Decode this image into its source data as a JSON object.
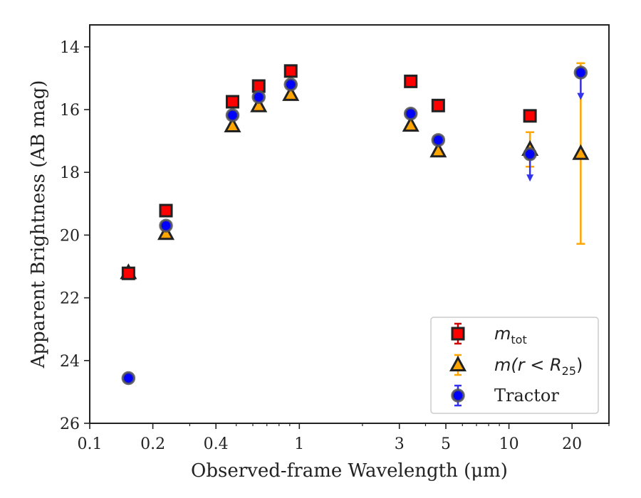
{
  "chart_data": {
    "type": "scatter",
    "xlabel": "Observed-frame Wavelength (μm)",
    "ylabel": "Apparent Brightness (AB mag)",
    "x_scale": "log",
    "xlim": [
      0.1,
      30
    ],
    "ylim": [
      26,
      13.3
    ],
    "y_inverted": true,
    "x_ticks": [
      0.1,
      0.2,
      0.4,
      1,
      3,
      5,
      10,
      20
    ],
    "x_tick_labels": [
      "0.1",
      "0.2",
      "0.4",
      "1",
      "3",
      "5",
      "10",
      "20"
    ],
    "y_ticks": [
      14,
      16,
      18,
      20,
      22,
      24,
      26
    ],
    "y_tick_labels": [
      "14",
      "16",
      "18",
      "20",
      "22",
      "24",
      "26"
    ],
    "grid": false,
    "legend_position": "bottom-right",
    "series": [
      {
        "name": "m_tot",
        "legend_main": "m",
        "legend_sub": "tot",
        "marker": "square",
        "color": "#ff0000",
        "edge_color": "#222222",
        "error_color": "#cc0000",
        "points": [
          {
            "x": 0.153,
            "y": 21.22
          },
          {
            "x": 0.231,
            "y": 19.22
          },
          {
            "x": 0.48,
            "y": 15.75
          },
          {
            "x": 0.64,
            "y": 15.25
          },
          {
            "x": 0.91,
            "y": 14.77
          },
          {
            "x": 3.4,
            "y": 15.1
          },
          {
            "x": 4.6,
            "y": 15.87
          },
          {
            "x": 12.6,
            "y": 16.2
          }
        ]
      },
      {
        "name": "m(r<R25)",
        "legend_main": "m(r < R",
        "legend_sub": "25",
        "legend_tail": ")",
        "marker": "triangle",
        "color": "#ffa500",
        "edge_color": "#222222",
        "error_color": "#ffa500",
        "points": [
          {
            "x": 0.153,
            "y": 21.2
          },
          {
            "x": 0.231,
            "y": 19.95
          },
          {
            "x": 0.48,
            "y": 16.52
          },
          {
            "x": 0.64,
            "y": 15.88
          },
          {
            "x": 0.91,
            "y": 15.52
          },
          {
            "x": 3.4,
            "y": 16.5
          },
          {
            "x": 4.6,
            "y": 17.32
          },
          {
            "x": 12.6,
            "y": 17.27,
            "err_low": 16.72,
            "err_high": 17.82
          },
          {
            "x": 22.0,
            "y": 17.4,
            "err_low": 14.52,
            "err_high": 20.28
          }
        ]
      },
      {
        "name": "Tractor",
        "marker": "circle",
        "color": "#0000ff",
        "edge_color": "#555555",
        "error_color": "#3333ee",
        "points": [
          {
            "x": 0.153,
            "y": 24.56
          },
          {
            "x": 0.231,
            "y": 19.7
          },
          {
            "x": 0.48,
            "y": 16.18
          },
          {
            "x": 0.64,
            "y": 15.6
          },
          {
            "x": 0.91,
            "y": 15.2
          },
          {
            "x": 3.4,
            "y": 16.13
          },
          {
            "x": 4.6,
            "y": 16.97
          },
          {
            "x": 12.6,
            "y": 17.42,
            "upper_limit_arrow_to": 18.25
          },
          {
            "x": 22.0,
            "y": 14.82,
            "upper_limit_arrow_to": 15.65
          }
        ]
      }
    ]
  }
}
